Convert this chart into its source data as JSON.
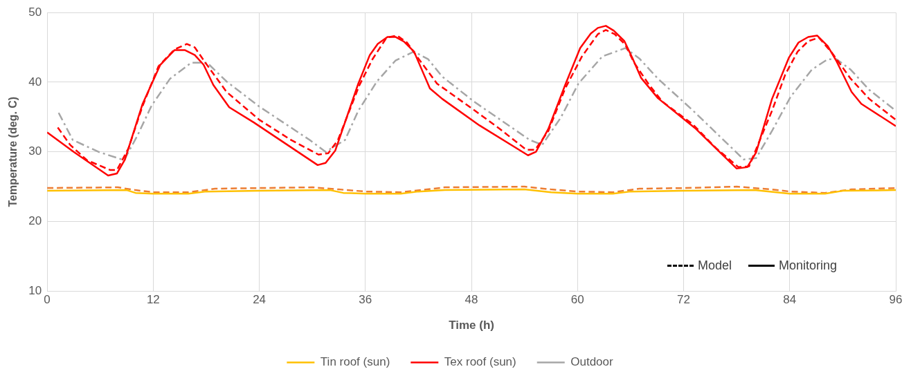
{
  "chart_data": {
    "type": "line",
    "xlabel": "Time (h)",
    "ylabel": "Temperature (deg. C)",
    "xlim": [
      0,
      96
    ],
    "xticks": [
      0,
      12,
      24,
      36,
      48,
      60,
      72,
      84,
      96
    ],
    "ylim": [
      10,
      50
    ],
    "yticks": [
      10,
      20,
      30,
      40,
      50
    ],
    "grid": true,
    "legend": "bottom",
    "marker": "none",
    "annotations": [
      "Model",
      "Monitoring"
    ],
    "series": [
      {
        "name": "Tin roof (sun)",
        "color": "#ffc000",
        "line_style": "solid",
        "x": [
          0,
          9,
          10,
          12,
          16,
          18,
          24,
          32,
          33.5,
          36,
          40,
          42,
          45,
          54,
          57,
          60,
          64,
          66,
          72,
          80,
          84,
          88,
          90,
          96
        ],
        "values": [
          24.4,
          24.5,
          24.1,
          24.0,
          24.0,
          24.3,
          24.4,
          24.5,
          24.1,
          24.0,
          24.0,
          24.3,
          24.5,
          24.6,
          24.2,
          24.0,
          24.0,
          24.3,
          24.4,
          24.5,
          24.0,
          24.0,
          24.4,
          24.5
        ]
      },
      {
        "color": "#ed7d31",
        "line_style": "dashed",
        "x": [
          0,
          8,
          10,
          12,
          16,
          19,
          24,
          30,
          33,
          36,
          40,
          43,
          45,
          54,
          57,
          60,
          64,
          67,
          72,
          78,
          82,
          84,
          88,
          91,
          96
        ],
        "values": [
          24.8,
          24.9,
          24.5,
          24.2,
          24.2,
          24.7,
          24.8,
          24.9,
          24.6,
          24.3,
          24.2,
          24.6,
          24.9,
          25.0,
          24.6,
          24.3,
          24.2,
          24.7,
          24.8,
          25.0,
          24.6,
          24.3,
          24.1,
          24.6,
          24.8
        ]
      },
      {
        "name": "Tex roof (sun)",
        "color": "#ff0000",
        "line_style": "solid",
        "x": [
          0,
          3,
          6.9,
          7.9,
          8.8,
          10.8,
          12.8,
          14.4,
          15.6,
          16.7,
          17.7,
          18.8,
          20.6,
          23.4,
          30.6,
          31.5,
          32.6,
          35.2,
          36.5,
          37.4,
          38.5,
          39.4,
          40.4,
          41.5,
          43.3,
          44.7,
          48.9,
          54.4,
          55.3,
          56.7,
          58.6,
          60.3,
          61.5,
          62.3,
          63.2,
          64.1,
          65.3,
          66.2,
          67.2,
          69.1,
          73.3,
          78.0,
          79.2,
          80.2,
          82.0,
          83.9,
          85.0,
          86.1,
          87.1,
          88.3,
          89.3,
          91.0,
          92.1,
          96
        ],
        "values": [
          32.8,
          30.0,
          26.6,
          26.9,
          28.9,
          36.9,
          42.5,
          44.6,
          44.6,
          43.9,
          42.5,
          39.6,
          36.4,
          34.2,
          28.1,
          28.4,
          30.2,
          39.8,
          43.9,
          45.5,
          46.5,
          46.5,
          45.8,
          44.4,
          39.1,
          37.6,
          33.8,
          29.5,
          30.0,
          33.3,
          39.6,
          44.9,
          47.0,
          47.8,
          48.1,
          47.4,
          45.9,
          43.5,
          40.6,
          37.7,
          33.4,
          27.6,
          27.8,
          29.9,
          37.6,
          43.5,
          45.7,
          46.5,
          46.7,
          45.2,
          43.0,
          38.6,
          36.9,
          33.7
        ]
      },
      {
        "color": "#ff0000",
        "line_style": "dashed",
        "x": [
          1.2,
          2.6,
          4.5,
          7.1,
          7.9,
          9.2,
          10.8,
          12.6,
          14.4,
          15.8,
          16.7,
          17.9,
          20.3,
          24.0,
          27.6,
          30.7,
          31.8,
          32.9,
          35.3,
          36.8,
          38.4,
          39.6,
          40.7,
          42.0,
          44.1,
          48.3,
          51.2,
          54.2,
          55.2,
          56.7,
          58.6,
          60.5,
          62.3,
          63.2,
          64.2,
          65.4,
          66.4,
          68.0,
          69.6,
          73.0,
          75.7,
          78.2,
          79.4,
          80.4,
          82.0,
          83.5,
          84.9,
          86.1,
          87.3,
          88.8,
          90.9,
          93.0,
          96
        ],
        "values": [
          33.5,
          31.0,
          28.8,
          27.4,
          27.4,
          30.5,
          36.6,
          42.3,
          44.7,
          45.5,
          45.0,
          42.8,
          38.6,
          34.6,
          31.7,
          29.6,
          29.8,
          31.7,
          39.5,
          43.3,
          46.4,
          46.7,
          45.7,
          43.4,
          39.8,
          36.0,
          33.3,
          30.3,
          30.3,
          33.0,
          39.1,
          43.7,
          46.9,
          47.5,
          46.9,
          45.4,
          42.8,
          39.8,
          37.2,
          34.0,
          30.5,
          27.8,
          27.9,
          31.0,
          35.9,
          41.1,
          44.4,
          45.9,
          46.4,
          44.2,
          40.5,
          37.6,
          34.6
        ]
      },
      {
        "name": "Outdoor",
        "color": "#a6a6a6",
        "line_style": "dashdot",
        "x": [
          1.3,
          2.9,
          5.8,
          8.7,
          10.2,
          11.8,
          13.9,
          16.3,
          18.1,
          20.3,
          24.0,
          29.7,
          31.5,
          33.7,
          35.2,
          37.3,
          39.4,
          41.5,
          43.1,
          44.7,
          48.3,
          54.6,
          56.0,
          58.1,
          60.1,
          62.8,
          65.4,
          67.0,
          69.1,
          73.0,
          78.8,
          80.2,
          82.0,
          84.1,
          86.5,
          88.3,
          89.3,
          90.9,
          93.0,
          96
        ],
        "values": [
          35.6,
          31.7,
          30.0,
          28.8,
          32.3,
          36.6,
          40.5,
          42.8,
          42.8,
          40.1,
          36.5,
          31.7,
          30.0,
          31.7,
          35.9,
          40.1,
          43.1,
          44.4,
          43.3,
          40.8,
          37.2,
          31.7,
          31.0,
          34.9,
          39.8,
          43.7,
          44.9,
          43.4,
          40.5,
          36.0,
          28.9,
          29.1,
          33.0,
          37.9,
          41.8,
          43.3,
          43.3,
          41.8,
          38.9,
          35.9
        ]
      }
    ]
  }
}
